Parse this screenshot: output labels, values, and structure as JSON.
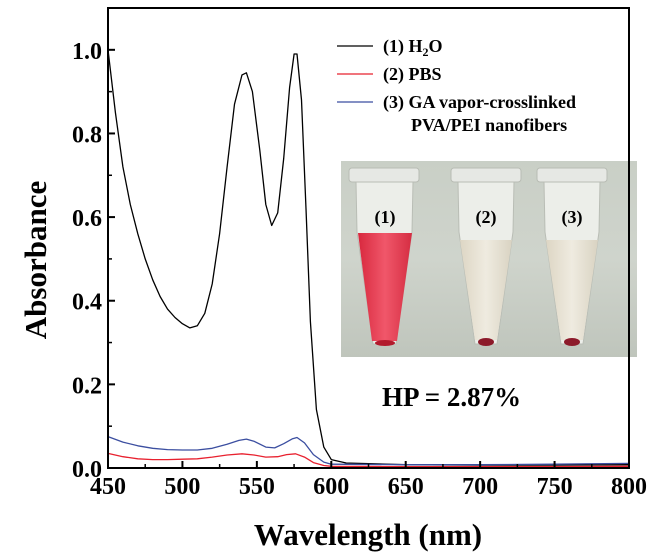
{
  "chart_data": {
    "type": "line",
    "title": "",
    "xlabel": "Wavelength (nm)",
    "ylabel": "Absorbance",
    "xlim": [
      450,
      800
    ],
    "ylim": [
      0.0,
      1.1
    ],
    "x_ticks": [
      "450",
      "500",
      "550",
      "600",
      "650",
      "700",
      "750",
      "800"
    ],
    "y_ticks": [
      "0.0",
      "0.2",
      "0.4",
      "0.6",
      "0.8",
      "1.0"
    ],
    "grid": false,
    "legend_position": "top-right",
    "series": [
      {
        "name": "(1) H₂O",
        "legend_main": "(1) H",
        "legend_sub": "2",
        "legend_tail": "O",
        "color": "#000000",
        "points": [
          [
            450,
            1.0
          ],
          [
            455,
            0.85
          ],
          [
            460,
            0.72
          ],
          [
            465,
            0.63
          ],
          [
            470,
            0.56
          ],
          [
            475,
            0.5
          ],
          [
            480,
            0.45
          ],
          [
            485,
            0.41
          ],
          [
            490,
            0.38
          ],
          [
            495,
            0.36
          ],
          [
            500,
            0.345
          ],
          [
            505,
            0.335
          ],
          [
            510,
            0.34
          ],
          [
            515,
            0.37
          ],
          [
            520,
            0.44
          ],
          [
            525,
            0.56
          ],
          [
            530,
            0.72
          ],
          [
            535,
            0.87
          ],
          [
            540,
            0.94
          ],
          [
            543,
            0.945
          ],
          [
            547,
            0.9
          ],
          [
            552,
            0.76
          ],
          [
            556,
            0.63
          ],
          [
            560,
            0.58
          ],
          [
            564,
            0.61
          ],
          [
            568,
            0.74
          ],
          [
            572,
            0.91
          ],
          [
            575,
            0.99
          ],
          [
            577,
            0.99
          ],
          [
            580,
            0.88
          ],
          [
            583,
            0.62
          ],
          [
            586,
            0.35
          ],
          [
            590,
            0.14
          ],
          [
            595,
            0.05
          ],
          [
            600,
            0.02
          ],
          [
            610,
            0.012
          ],
          [
            650,
            0.008
          ],
          [
            700,
            0.007
          ],
          [
            750,
            0.007
          ],
          [
            800,
            0.008
          ]
        ]
      },
      {
        "name": "(2) PBS",
        "color": "#e8212f",
        "points": [
          [
            450,
            0.035
          ],
          [
            460,
            0.027
          ],
          [
            470,
            0.022
          ],
          [
            480,
            0.02
          ],
          [
            490,
            0.02
          ],
          [
            500,
            0.021
          ],
          [
            510,
            0.022
          ],
          [
            520,
            0.026
          ],
          [
            530,
            0.031
          ],
          [
            540,
            0.034
          ],
          [
            548,
            0.031
          ],
          [
            556,
            0.026
          ],
          [
            564,
            0.027
          ],
          [
            570,
            0.032
          ],
          [
            576,
            0.034
          ],
          [
            582,
            0.026
          ],
          [
            588,
            0.013
          ],
          [
            595,
            0.006
          ],
          [
            600,
            0.004
          ],
          [
            650,
            0.003
          ],
          [
            700,
            0.003
          ],
          [
            750,
            0.003
          ],
          [
            800,
            0.004
          ]
        ]
      },
      {
        "name": "(3) GA vapor-crosslinked",
        "name_line2": "PVA/PEI nanofibers",
        "color": "#3b4ea0",
        "points": [
          [
            450,
            0.075
          ],
          [
            460,
            0.062
          ],
          [
            470,
            0.053
          ],
          [
            480,
            0.047
          ],
          [
            490,
            0.044
          ],
          [
            500,
            0.043
          ],
          [
            510,
            0.043
          ],
          [
            520,
            0.047
          ],
          [
            530,
            0.057
          ],
          [
            538,
            0.066
          ],
          [
            543,
            0.069
          ],
          [
            548,
            0.064
          ],
          [
            556,
            0.05
          ],
          [
            562,
            0.048
          ],
          [
            568,
            0.058
          ],
          [
            574,
            0.07
          ],
          [
            577,
            0.073
          ],
          [
            582,
            0.06
          ],
          [
            588,
            0.032
          ],
          [
            595,
            0.014
          ],
          [
            600,
            0.009
          ],
          [
            650,
            0.008
          ],
          [
            700,
            0.008
          ],
          [
            750,
            0.009
          ],
          [
            800,
            0.011
          ]
        ]
      }
    ],
    "annotation": "HP = 2.87%",
    "photo_labels": [
      "(1)",
      "(2)",
      "(3)"
    ]
  }
}
